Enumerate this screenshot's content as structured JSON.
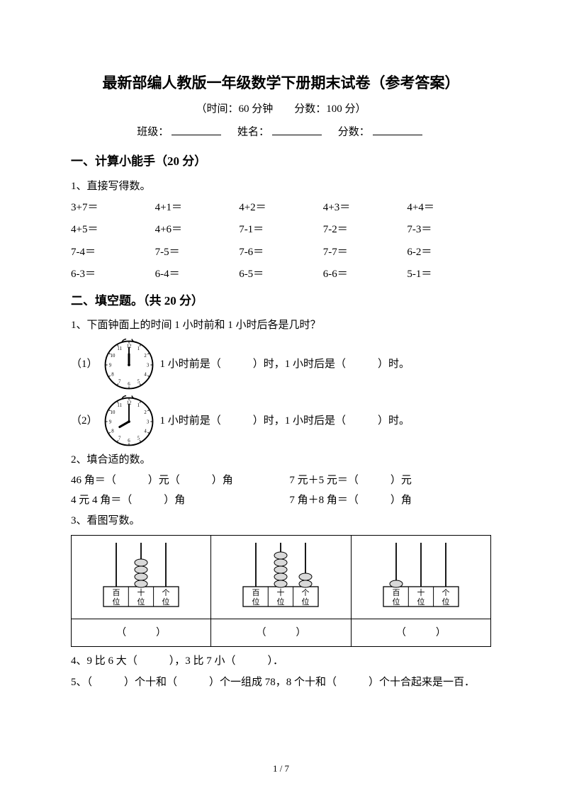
{
  "title": "最新部编人教版一年级数学下册期末试卷（参考答案）",
  "subtitle": "（时间：60 分钟　　分数：100 分）",
  "info": {
    "class_label": "班级：",
    "name_label": "姓名：",
    "score_label": "分数："
  },
  "s1": {
    "heading": "一、计算小能手（20 分）",
    "q1_label": "1、直接写得数。",
    "equations": [
      "3+7＝",
      "4+1＝",
      "4+2＝",
      "4+3＝",
      "4+4＝",
      "4+5＝",
      "4+6＝",
      "7-1＝",
      "7-2＝",
      "7-3＝",
      "7-4＝",
      "7-5＝",
      "7-6＝",
      "7-7＝",
      "6-2＝",
      "6-3＝",
      "6-4＝",
      "6-5＝",
      "6-6＝",
      "5-1＝"
    ]
  },
  "s2": {
    "heading": "二、填空题。（共 20 分）",
    "q1_label": "1、下面钟面上的时间 1 小时前和 1 小时后各是几时？",
    "clock1_prefix": "（1）",
    "clock2_prefix": "（2）",
    "clock_tail": "1 小时前是（　　　）时，1 小时后是（　　　）时。",
    "q2_label": "2、填合适的数。",
    "m1": "46 角＝（　　　）元（　　　）角",
    "m2": "7 元＋5 元＝（　　　）元",
    "m3": "4 元 4 角＝（　　　）角",
    "m4": "7 角＋8 角＝（　　　）角",
    "q3_label": "3、看图写数。",
    "abacus_labels": {
      "h": "百",
      "t": "十",
      "o": "个",
      "pos": "位"
    },
    "answer_blank": "（　　　）",
    "q4_text": "4、9 比 6 大（　　　），3 比 7 小（　　　）．",
    "q5_text": "5、（　　　）个十和（　　　）个一组成 78，8 个十和（　　　）个十合起来是一百．"
  },
  "clocks": {
    "c1": {
      "hour_angle": 0,
      "minute_angle": 0
    },
    "c2": {
      "hour_angle": -120,
      "minute_angle": 0
    }
  },
  "abacus": {
    "a1": {
      "h": 0,
      "t": 4,
      "o": 0
    },
    "a2": {
      "h": 0,
      "t": 5,
      "o": 2
    },
    "a3": {
      "h": 1,
      "t": 0,
      "o": 0
    }
  },
  "page_num": "1 / 7",
  "colors": {
    "text": "#000000",
    "bg": "#ffffff",
    "line": "#000000"
  }
}
